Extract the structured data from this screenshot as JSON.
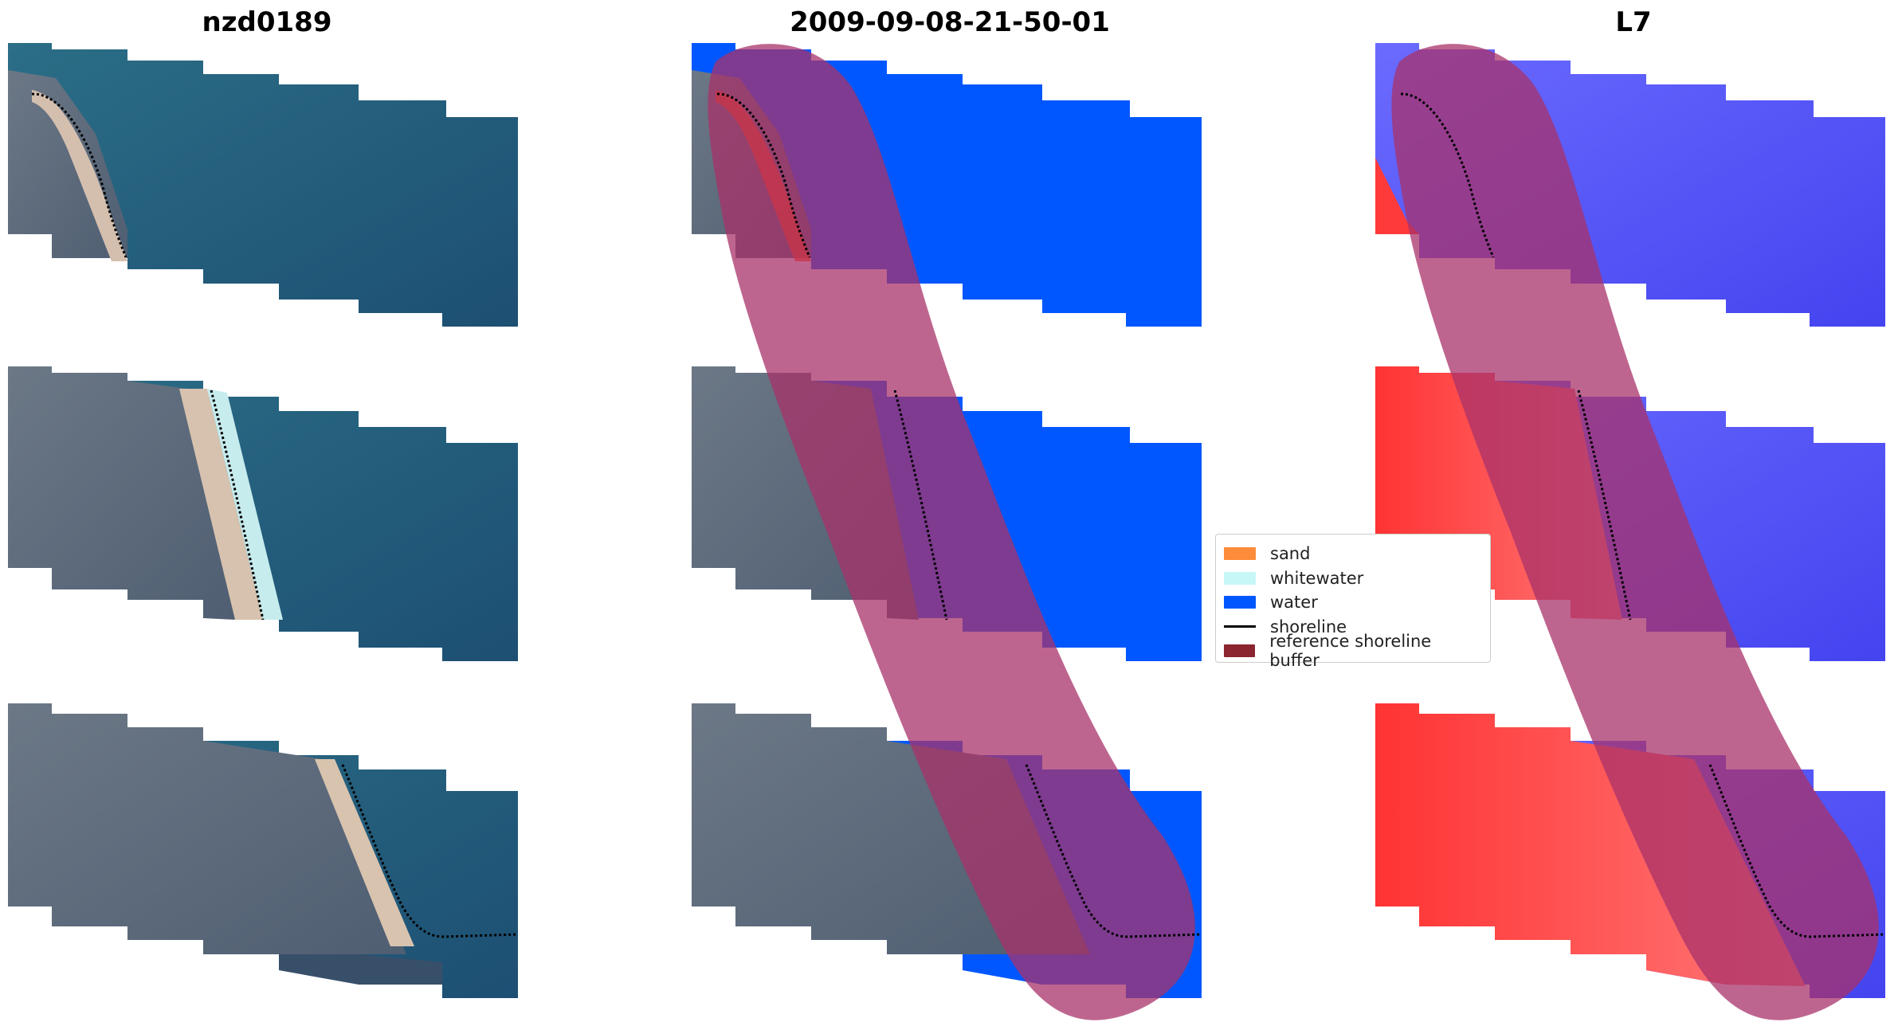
{
  "titles": {
    "left": "nzd0189",
    "middle": "2009-09-08-21-50-01",
    "right": "L7"
  },
  "legend": {
    "items": [
      {
        "label": "sand",
        "kind": "patch",
        "color": "#ff8c3a"
      },
      {
        "label": "whitewater",
        "kind": "patch",
        "color": "#c8f7f7"
      },
      {
        "label": "water",
        "kind": "patch",
        "color": "#0057ff"
      },
      {
        "label": "shoreline",
        "kind": "line",
        "color": "#000000"
      },
      {
        "label": "reference shoreline buffer",
        "kind": "patch",
        "color": "#8b2530"
      }
    ]
  },
  "colors": {
    "water_sea": "#1f5b7a",
    "land_green": "#5d6e7a",
    "beach": "#d9c3ad",
    "class_water": "#0057ff",
    "buffer": "#b03a70",
    "index_water": "#3f3fff",
    "index_land": "#ff2a2a"
  }
}
